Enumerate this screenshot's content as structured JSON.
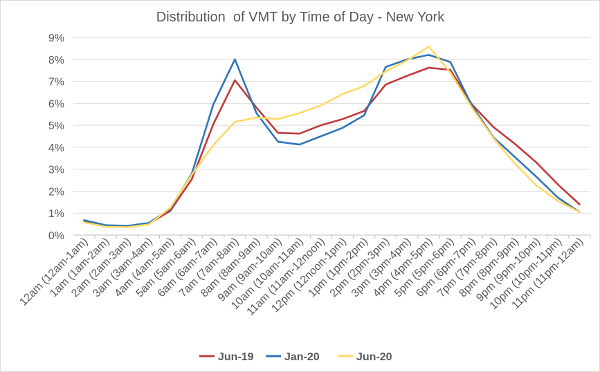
{
  "chart_data": {
    "type": "line",
    "title": "Distribution  of VMT by Time of Day - New York",
    "xlabel": "",
    "ylabel": "",
    "ylim": [
      0,
      9
    ],
    "y_ticks": [
      "0%",
      "1%",
      "2%",
      "3%",
      "4%",
      "5%",
      "6%",
      "7%",
      "8%",
      "9%"
    ],
    "grid": "horizontal",
    "legend": "bottom",
    "categories": [
      "12am (12am-1am)",
      "1am (1am-2am)",
      "2am (2am-3am)",
      "3am (3am-4am)",
      "4am (4am-5am)",
      "5am (5am-6am)",
      "6am (6am-7am)",
      "7am (7am-8am)",
      "8am (8am-9am)",
      "9am (9am-10am)",
      "10am (10am-11am)",
      "11am (11am-12noon)",
      "12pm (12noon-1pm)",
      "1pm (1pm-2pm)",
      "2pm (2pm-3pm)",
      "3pm (3pm-4pm)",
      "4pm (4pm-5pm)",
      "5pm (5pm-6pm)",
      "6pm (6pm-7pm)",
      "7pm (7pm-8pm)",
      "8pm (8pm-9pm)",
      "9pm (9pm-10pm)",
      "10pm (10pm-11pm)",
      "11pm (11pm-12am)"
    ],
    "series": [
      {
        "name": "Jun-19",
        "color": "#c0393b",
        "values": [
          0.65,
          0.42,
          0.4,
          0.52,
          1.1,
          2.55,
          5.05,
          7.05,
          5.8,
          4.65,
          4.62,
          5.0,
          5.28,
          5.65,
          6.85,
          7.25,
          7.62,
          7.52,
          5.95,
          4.92,
          4.15,
          3.3,
          2.3,
          1.4
        ]
      },
      {
        "name": "Jan-20",
        "color": "#2e75b6",
        "values": [
          0.68,
          0.45,
          0.42,
          0.55,
          1.2,
          2.8,
          5.95,
          8.0,
          5.55,
          4.25,
          4.12,
          4.5,
          4.88,
          5.45,
          7.65,
          8.0,
          8.2,
          7.88,
          5.9,
          4.45,
          3.55,
          2.65,
          1.7,
          1.05
        ]
      },
      {
        "name": "Jun-20",
        "color": "#ffd966",
        "values": [
          0.58,
          0.38,
          0.36,
          0.48,
          1.25,
          2.75,
          4.1,
          5.15,
          5.35,
          5.28,
          5.55,
          5.9,
          6.42,
          6.78,
          7.45,
          7.95,
          8.58,
          7.4,
          5.8,
          4.42,
          3.25,
          2.25,
          1.55,
          1.05
        ]
      }
    ]
  }
}
